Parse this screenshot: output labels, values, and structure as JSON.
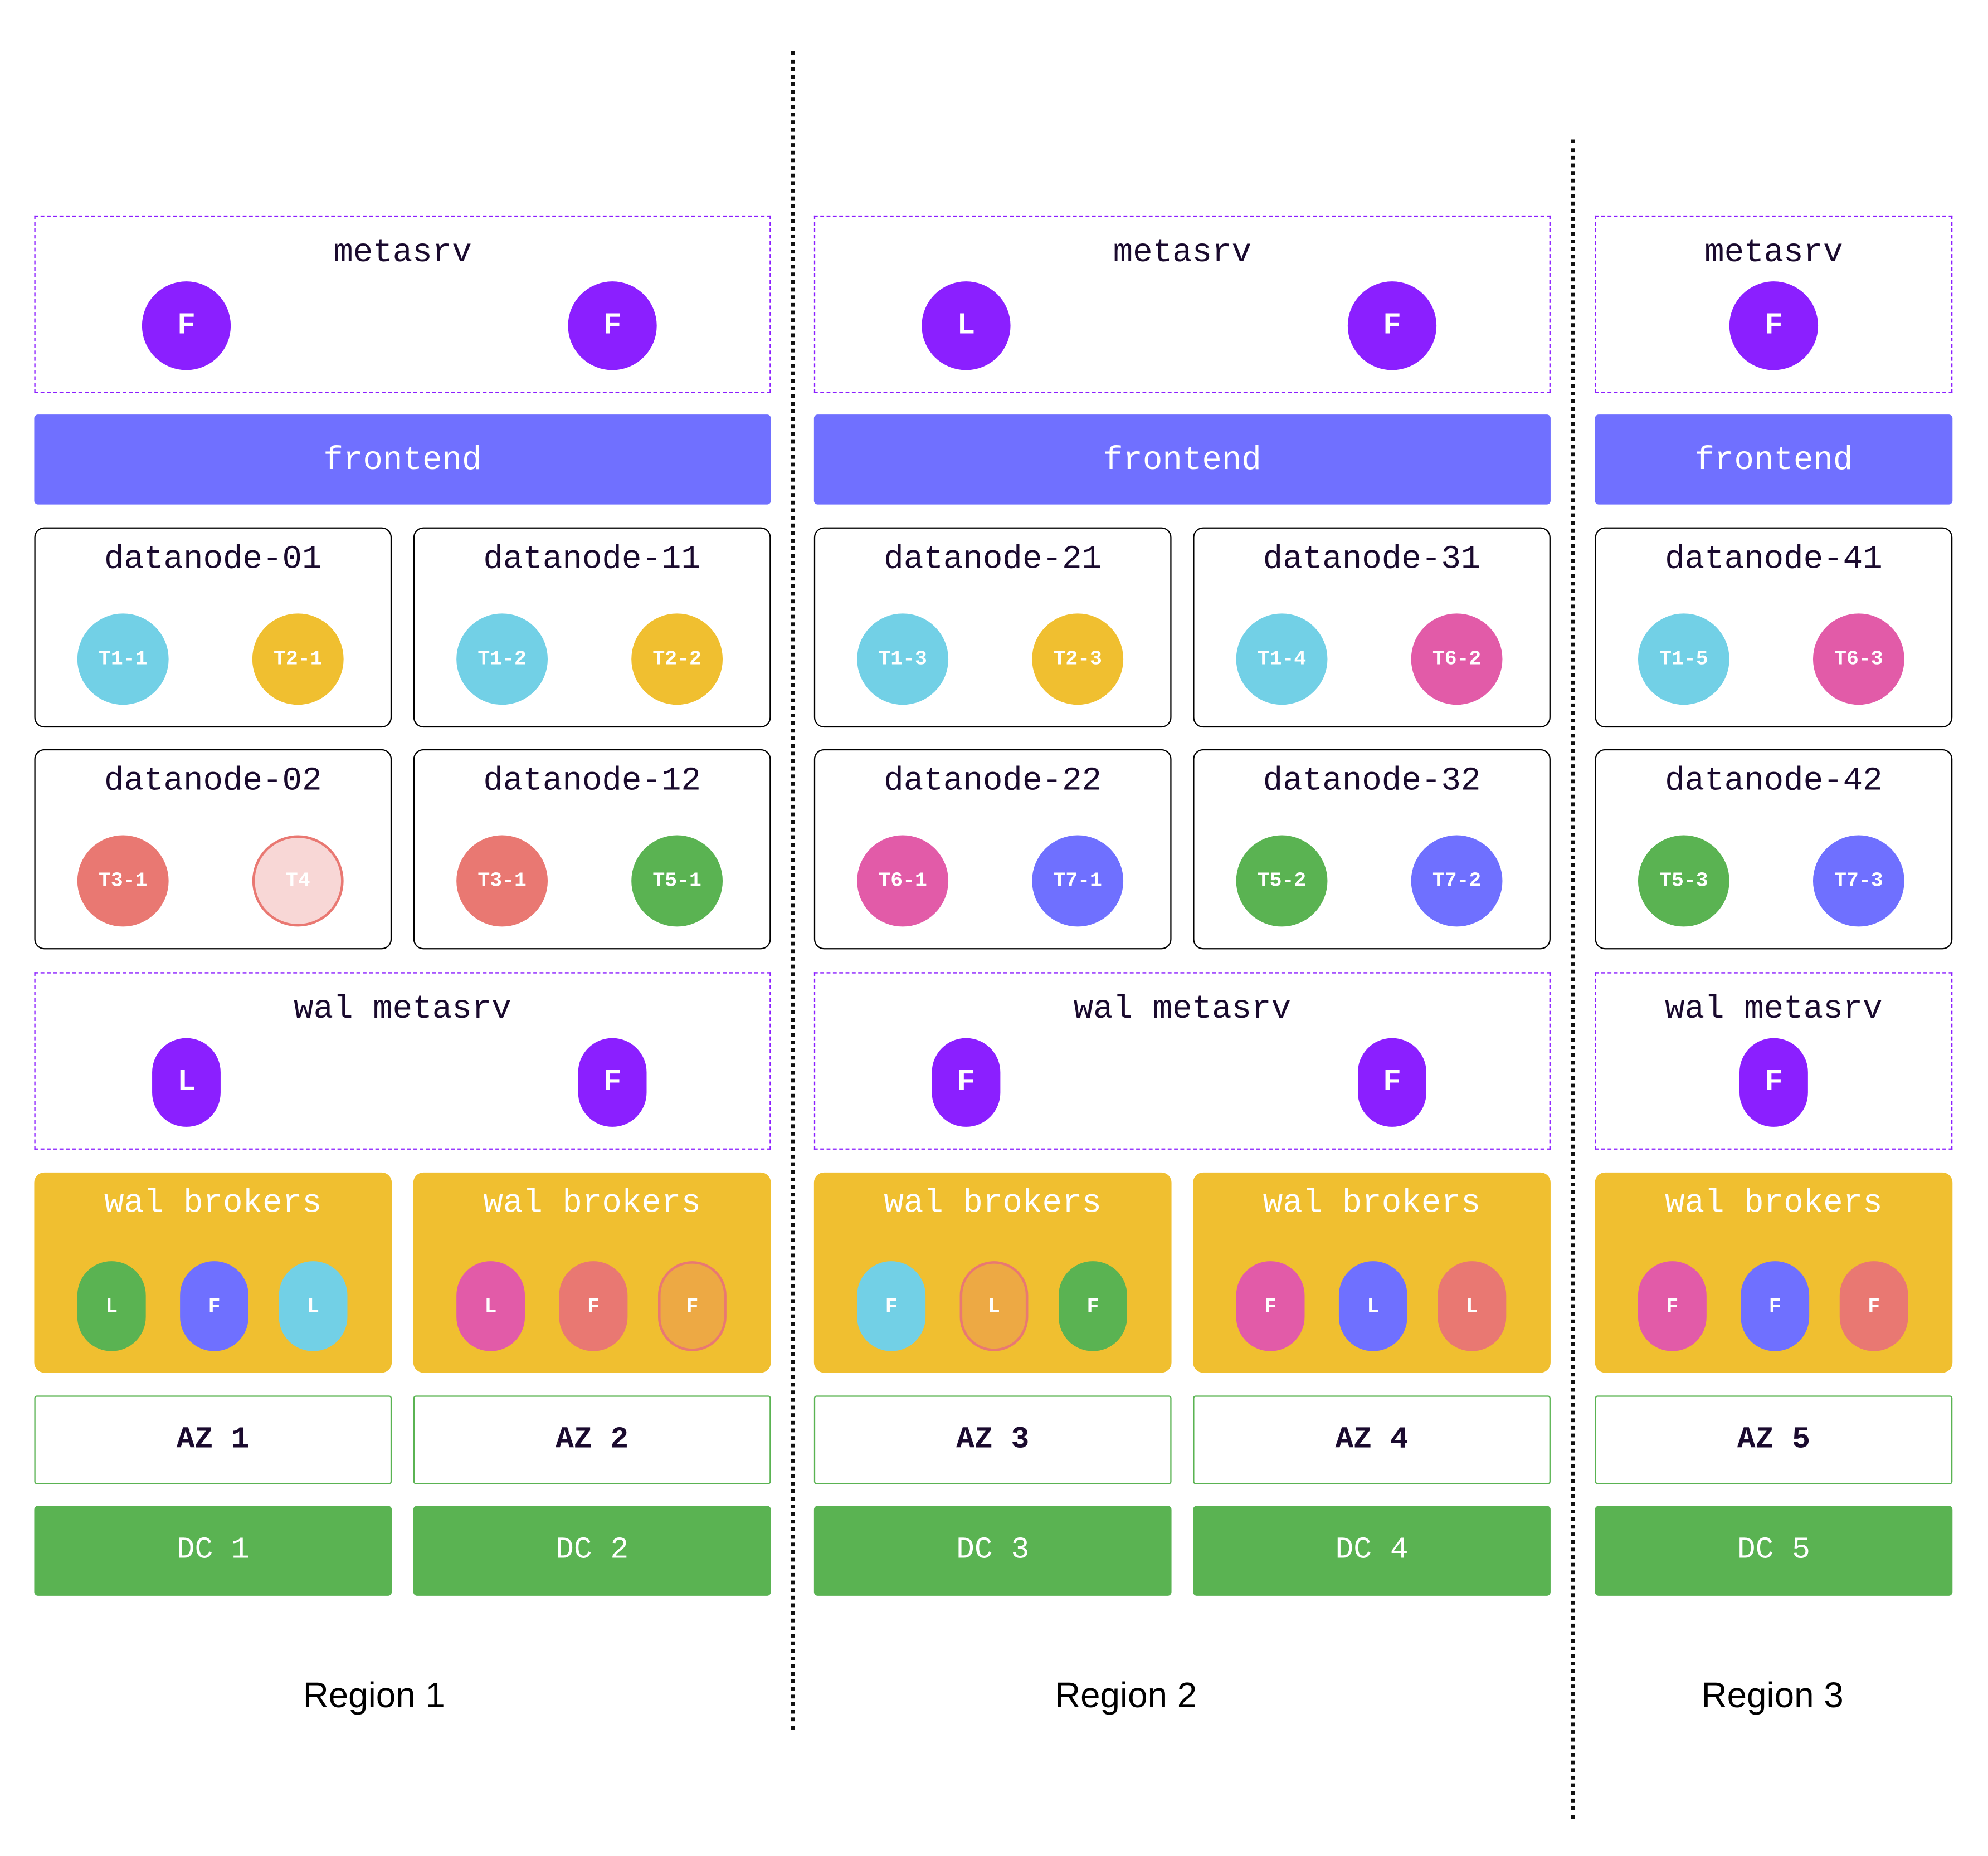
{
  "colors": {
    "purple": "#8B1FFF",
    "cyan": "#72D0E6",
    "yellow": "#F0BF30",
    "pink": "#E25BA8",
    "red": "#E97872",
    "green": "#5AB352",
    "blue": "#6F70FF",
    "light-red": "#F8D7D6",
    "orange": "#EDA944",
    "frontend": "#7070FF"
  },
  "regions": [
    {
      "label": "Region 1",
      "metasrv": {
        "title": "metasrv",
        "nodes": [
          "F",
          "F"
        ]
      },
      "frontend": "frontend",
      "datanodes": [
        [
          {
            "name": "datanode-01",
            "tables": [
              {
                "label": "T1-1",
                "color": "cyan"
              },
              {
                "label": "T2-1",
                "color": "yellow"
              }
            ]
          },
          {
            "name": "datanode-11",
            "tables": [
              {
                "label": "T1-2",
                "color": "cyan"
              },
              {
                "label": "T2-2",
                "color": "yellow"
              }
            ]
          }
        ],
        [
          {
            "name": "datanode-02",
            "tables": [
              {
                "label": "T3-1",
                "color": "red"
              },
              {
                "label": "T4",
                "color": "light-red",
                "outlined": true
              }
            ]
          },
          {
            "name": "datanode-12",
            "tables": [
              {
                "label": "T3-1",
                "color": "red"
              },
              {
                "label": "T5-1",
                "color": "green"
              }
            ]
          }
        ]
      ],
      "wal_metasrv": {
        "title": "wal metasrv",
        "nodes": [
          "L",
          "F"
        ]
      },
      "brokers": [
        {
          "title": "wal brokers",
          "nodes": [
            {
              "label": "L",
              "color": "green"
            },
            {
              "label": "F",
              "color": "blue"
            },
            {
              "label": "L",
              "color": "cyan"
            }
          ]
        },
        {
          "title": "wal brokers",
          "nodes": [
            {
              "label": "L",
              "color": "pink"
            },
            {
              "label": "F",
              "color": "red"
            },
            {
              "label": "F",
              "color": "orange",
              "outlined": true
            }
          ]
        }
      ],
      "azs": [
        "AZ 1",
        "AZ 2"
      ],
      "dcs": [
        "DC 1",
        "DC 2"
      ]
    },
    {
      "label": "Region 2",
      "metasrv": {
        "title": "metasrv",
        "nodes": [
          "L",
          "F"
        ]
      },
      "frontend": "frontend",
      "datanodes": [
        [
          {
            "name": "datanode-21",
            "tables": [
              {
                "label": "T1-3",
                "color": "cyan"
              },
              {
                "label": "T2-3",
                "color": "yellow"
              }
            ]
          },
          {
            "name": "datanode-31",
            "tables": [
              {
                "label": "T1-4",
                "color": "cyan"
              },
              {
                "label": "T6-2",
                "color": "pink"
              }
            ]
          }
        ],
        [
          {
            "name": "datanode-22",
            "tables": [
              {
                "label": "T6-1",
                "color": "pink"
              },
              {
                "label": "T7-1",
                "color": "blue"
              }
            ]
          },
          {
            "name": "datanode-32",
            "tables": [
              {
                "label": "T5-2",
                "color": "green"
              },
              {
                "label": "T7-2",
                "color": "blue"
              }
            ]
          }
        ]
      ],
      "wal_metasrv": {
        "title": "wal metasrv",
        "nodes": [
          "F",
          "F"
        ]
      },
      "brokers": [
        {
          "title": "wal brokers",
          "nodes": [
            {
              "label": "F",
              "color": "cyan"
            },
            {
              "label": "L",
              "color": "orange",
              "outlined": true
            },
            {
              "label": "F",
              "color": "green"
            }
          ]
        },
        {
          "title": "wal brokers",
          "nodes": [
            {
              "label": "F",
              "color": "pink"
            },
            {
              "label": "L",
              "color": "blue"
            },
            {
              "label": "L",
              "color": "red"
            }
          ]
        }
      ],
      "azs": [
        "AZ 3",
        "AZ 4"
      ],
      "dcs": [
        "DC 3",
        "DC 4"
      ]
    },
    {
      "label": "Region 3",
      "metasrv": {
        "title": "metasrv",
        "nodes": [
          "F"
        ]
      },
      "frontend": "frontend",
      "datanodes": [
        [
          {
            "name": "datanode-41",
            "tables": [
              {
                "label": "T1-5",
                "color": "cyan"
              },
              {
                "label": "T6-3",
                "color": "pink"
              }
            ]
          }
        ],
        [
          {
            "name": "datanode-42",
            "tables": [
              {
                "label": "T5-3",
                "color": "green"
              },
              {
                "label": "T7-3",
                "color": "blue"
              }
            ]
          }
        ]
      ],
      "wal_metasrv": {
        "title": "wal metasrv",
        "nodes": [
          "F"
        ]
      },
      "brokers": [
        {
          "title": "wal brokers",
          "nodes": [
            {
              "label": "F",
              "color": "pink"
            },
            {
              "label": "F",
              "color": "blue"
            },
            {
              "label": "F",
              "color": "red"
            }
          ]
        }
      ],
      "azs": [
        "AZ 5"
      ],
      "dcs": [
        "DC 5"
      ]
    }
  ]
}
